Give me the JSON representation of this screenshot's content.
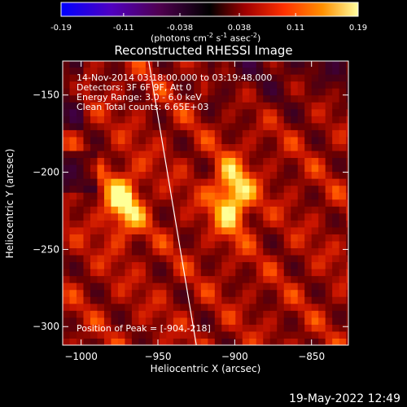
{
  "colorbar": {
    "ticks": [
      "-0.19",
      "-0.11",
      "-0.038",
      "0.038",
      "0.11",
      "0.19"
    ],
    "tick_values": [
      -0.19,
      -0.11,
      -0.038,
      0.038,
      0.11,
      0.19
    ],
    "unit_prefix": "(photons cm",
    "unit_exp1": "-2",
    "unit_mid": " s",
    "unit_exp2": "-1",
    "unit_mid2": " asec",
    "unit_exp3": "-2",
    "unit_suffix": ")"
  },
  "plot": {
    "title": "Reconstructed RHESSI Image",
    "xlabel": "Heliocentric X (arcsec)",
    "ylabel": "Heliocentric Y (arcsec)",
    "info": [
      "14-Nov-2014 03:18:00.000 to 03:19:48.000",
      "Detectors: 3F 6F 9F, Att 0",
      "Energy Range: 3.0 - 6.0 keV",
      "Clean     Total counts: 6.65E+03"
    ],
    "peak_label": "Position of Peak = [-904,-218]"
  },
  "chart_data": {
    "type": "heatmap",
    "title": "Reconstructed RHESSI Image",
    "xlabel": "Heliocentric X (arcsec)",
    "ylabel": "Heliocentric Y (arcsec)",
    "xlim": [
      -1012,
      -826
    ],
    "ylim": [
      -312,
      -128
    ],
    "x_ticks": [
      -1000,
      -950,
      -900,
      -850
    ],
    "y_ticks": [
      -300,
      -250,
      -200,
      -150
    ],
    "color_range": [
      -0.19,
      0.19
    ],
    "peak_position": [
      -904,
      -218
    ],
    "bright_sources": [
      {
        "x": -904,
        "y": -218,
        "level": 1.0
      },
      {
        "x": -975,
        "y": -222,
        "level": 0.85
      }
    ],
    "limb_line": [
      [
        -956,
        -128
      ],
      [
        -925,
        -312
      ]
    ]
  },
  "footer": {
    "date": "19-May-2022 12:49"
  }
}
